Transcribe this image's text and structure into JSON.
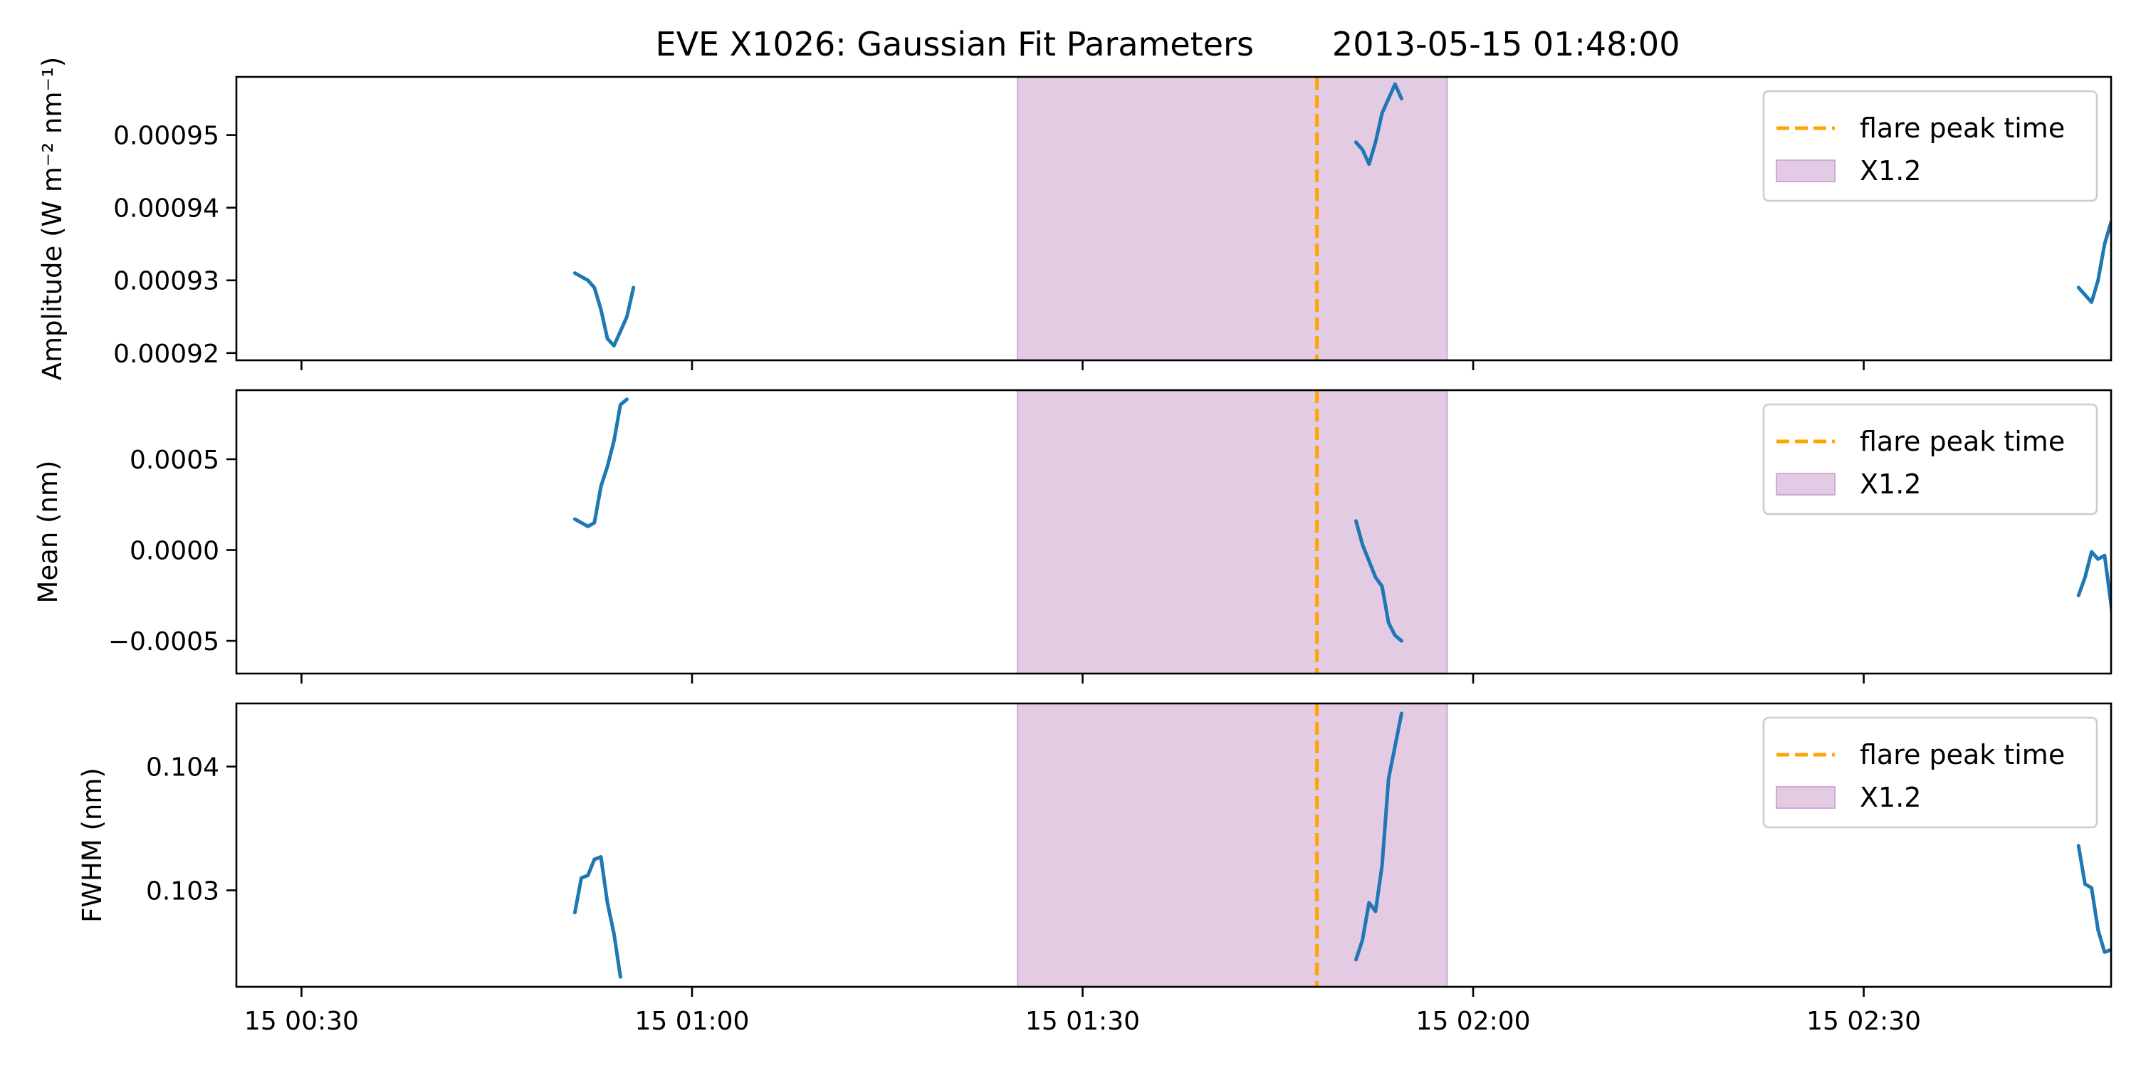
{
  "figure": {
    "title": "EVE X1026: Gaussian Fit Parameters",
    "timestamp": "2013-05-15 01:48:00"
  },
  "chart_data": [
    {
      "type": "line",
      "panel": "amplitude",
      "ylabel": "Amplitude (W m⁻² nm⁻¹)",
      "xlim": [
        "2013-05-15 00:25:00",
        "2013-05-15 02:49:00"
      ],
      "ylim": [
        0.000919,
        0.000958
      ],
      "yticks": [
        0.00092,
        0.00093,
        0.00094,
        0.00095
      ],
      "ytick_labels": [
        "0.00092",
        "0.00093",
        "0.00094",
        "0.00095"
      ],
      "xticks": [
        "2013-05-15 00:30:00",
        "2013-05-15 01:00:00",
        "2013-05-15 01:30:00",
        "2013-05-15 02:00:00",
        "2013-05-15 02:30:00"
      ],
      "xtick_labels": [],
      "shaded_region": {
        "start": "2013-05-15 01:25:00",
        "end": "2013-05-15 01:58:00",
        "label": "X1.2",
        "color": "#e3cce3",
        "edge_color": "#cfa8d8"
      },
      "vline": {
        "x": "2013-05-15 01:48:00",
        "label": "flare peak time",
        "color": "#ffa500"
      },
      "series": [
        {
          "name": "",
          "color": "#1f77b4",
          "segments": [
            [
              {
                "x": "2013-05-15 00:51:00",
                "y": 0.000931
              },
              {
                "x": "2013-05-15 00:52:00",
                "y": 0.00093
              },
              {
                "x": "2013-05-15 00:52:30",
                "y": 0.000929
              },
              {
                "x": "2013-05-15 00:53:00",
                "y": 0.000926
              },
              {
                "x": "2013-05-15 00:53:30",
                "y": 0.000922
              },
              {
                "x": "2013-05-15 00:54:00",
                "y": 0.000921
              },
              {
                "x": "2013-05-15 00:54:30",
                "y": 0.000923
              },
              {
                "x": "2013-05-15 00:55:00",
                "y": 0.000925
              },
              {
                "x": "2013-05-15 00:55:30",
                "y": 0.000929
              }
            ],
            [
              {
                "x": "2013-05-15 01:51:00",
                "y": 0.000949
              },
              {
                "x": "2013-05-15 01:51:30",
                "y": 0.000948
              },
              {
                "x": "2013-05-15 01:52:00",
                "y": 0.000946
              },
              {
                "x": "2013-05-15 01:52:30",
                "y": 0.000949
              },
              {
                "x": "2013-05-15 01:53:00",
                "y": 0.000953
              },
              {
                "x": "2013-05-15 01:53:30",
                "y": 0.000955
              },
              {
                "x": "2013-05-15 01:54:00",
                "y": 0.000957
              },
              {
                "x": "2013-05-15 01:54:30",
                "y": 0.000955
              }
            ],
            [
              {
                "x": "2013-05-15 02:46:30",
                "y": 0.000929
              },
              {
                "x": "2013-05-15 02:47:00",
                "y": 0.000928
              },
              {
                "x": "2013-05-15 02:47:30",
                "y": 0.000927
              },
              {
                "x": "2013-05-15 02:48:00",
                "y": 0.00093
              },
              {
                "x": "2013-05-15 02:48:30",
                "y": 0.000935
              },
              {
                "x": "2013-05-15 02:49:00",
                "y": 0.000938
              },
              {
                "x": "2013-05-15 02:49:30",
                "y": 0.000938
              }
            ]
          ]
        }
      ],
      "legend": {
        "location": "upper right",
        "entries": [
          "flare peak time",
          "X1.2"
        ]
      }
    },
    {
      "type": "line",
      "panel": "mean",
      "ylabel": "Mean (nm)",
      "xlim": [
        "2013-05-15 00:25:00",
        "2013-05-15 02:49:00"
      ],
      "ylim": [
        -0.00068,
        0.00088
      ],
      "yticks": [
        -0.0005,
        0.0,
        0.0005
      ],
      "ytick_labels": [
        "−0.0005",
        "0.0000",
        "0.0005"
      ],
      "xticks": [
        "2013-05-15 00:30:00",
        "2013-05-15 01:00:00",
        "2013-05-15 01:30:00",
        "2013-05-15 02:00:00",
        "2013-05-15 02:30:00"
      ],
      "xtick_labels": [],
      "shaded_region": {
        "start": "2013-05-15 01:25:00",
        "end": "2013-05-15 01:58:00",
        "label": "X1.2",
        "color": "#e3cce3",
        "edge_color": "#cfa8d8"
      },
      "vline": {
        "x": "2013-05-15 01:48:00",
        "label": "flare peak time",
        "color": "#ffa500"
      },
      "series": [
        {
          "name": "",
          "color": "#1f77b4",
          "segments": [
            [
              {
                "x": "2013-05-15 00:51:00",
                "y": 0.00017
              },
              {
                "x": "2013-05-15 00:52:00",
                "y": 0.00013
              },
              {
                "x": "2013-05-15 00:52:30",
                "y": 0.00015
              },
              {
                "x": "2013-05-15 00:53:00",
                "y": 0.00035
              },
              {
                "x": "2013-05-15 00:53:30",
                "y": 0.00046
              },
              {
                "x": "2013-05-15 00:54:00",
                "y": 0.0006
              },
              {
                "x": "2013-05-15 00:54:30",
                "y": 0.0008
              },
              {
                "x": "2013-05-15 00:55:00",
                "y": 0.00083
              }
            ],
            [
              {
                "x": "2013-05-15 01:51:00",
                "y": 0.00016
              },
              {
                "x": "2013-05-15 01:51:30",
                "y": 3e-05
              },
              {
                "x": "2013-05-15 01:52:00",
                "y": -6e-05
              },
              {
                "x": "2013-05-15 01:52:30",
                "y": -0.00015
              },
              {
                "x": "2013-05-15 01:53:00",
                "y": -0.0002
              },
              {
                "x": "2013-05-15 01:53:30",
                "y": -0.0004
              },
              {
                "x": "2013-05-15 01:54:00",
                "y": -0.00047
              },
              {
                "x": "2013-05-15 01:54:30",
                "y": -0.0005
              }
            ],
            [
              {
                "x": "2013-05-15 02:46:30",
                "y": -0.00025
              },
              {
                "x": "2013-05-15 02:47:00",
                "y": -0.00015
              },
              {
                "x": "2013-05-15 02:47:30",
                "y": -1e-05
              },
              {
                "x": "2013-05-15 02:48:00",
                "y": -5e-05
              },
              {
                "x": "2013-05-15 02:48:30",
                "y": -3e-05
              },
              {
                "x": "2013-05-15 02:49:00",
                "y": -0.0003
              },
              {
                "x": "2013-05-15 02:49:30",
                "y": -0.00062
              }
            ]
          ]
        }
      ],
      "legend": {
        "location": "upper right",
        "entries": [
          "flare peak time",
          "X1.2"
        ]
      }
    },
    {
      "type": "line",
      "panel": "fwhm",
      "ylabel": "FWHM (nm)",
      "xlim": [
        "2013-05-15 00:25:00",
        "2013-05-15 02:49:00"
      ],
      "ylim": [
        0.10222,
        0.10451
      ],
      "yticks": [
        0.103,
        0.104
      ],
      "ytick_labels": [
        "0.103",
        "0.104"
      ],
      "xticks": [
        "2013-05-15 00:30:00",
        "2013-05-15 01:00:00",
        "2013-05-15 01:30:00",
        "2013-05-15 02:00:00",
        "2013-05-15 02:30:00"
      ],
      "xtick_labels": [
        "15 00:30",
        "15 01:00",
        "15 01:30",
        "15 02:00",
        "15 02:30"
      ],
      "shaded_region": {
        "start": "2013-05-15 01:25:00",
        "end": "2013-05-15 01:58:00",
        "label": "X1.2",
        "color": "#e3cce3",
        "edge_color": "#cfa8d8"
      },
      "vline": {
        "x": "2013-05-15 01:48:00",
        "label": "flare peak time",
        "color": "#ffa500"
      },
      "series": [
        {
          "name": "",
          "color": "#1f77b4",
          "segments": [
            [
              {
                "x": "2013-05-15 00:51:00",
                "y": 0.10282
              },
              {
                "x": "2013-05-15 00:51:30",
                "y": 0.1031
              },
              {
                "x": "2013-05-15 00:52:00",
                "y": 0.10312
              },
              {
                "x": "2013-05-15 00:52:30",
                "y": 0.10325
              },
              {
                "x": "2013-05-15 00:53:00",
                "y": 0.10327
              },
              {
                "x": "2013-05-15 00:53:30",
                "y": 0.1029
              },
              {
                "x": "2013-05-15 00:54:00",
                "y": 0.10265
              },
              {
                "x": "2013-05-15 00:54:30",
                "y": 0.1023
              }
            ],
            [
              {
                "x": "2013-05-15 01:51:00",
                "y": 0.10244
              },
              {
                "x": "2013-05-15 01:51:30",
                "y": 0.1026
              },
              {
                "x": "2013-05-15 01:52:00",
                "y": 0.1029
              },
              {
                "x": "2013-05-15 01:52:30",
                "y": 0.10283
              },
              {
                "x": "2013-05-15 01:53:00",
                "y": 0.1032
              },
              {
                "x": "2013-05-15 01:53:30",
                "y": 0.1039
              },
              {
                "x": "2013-05-15 01:54:30",
                "y": 0.10443
              }
            ],
            [
              {
                "x": "2013-05-15 02:46:30",
                "y": 0.10336
              },
              {
                "x": "2013-05-15 02:47:00",
                "y": 0.10305
              },
              {
                "x": "2013-05-15 02:47:30",
                "y": 0.10302
              },
              {
                "x": "2013-05-15 02:48:00",
                "y": 0.10268
              },
              {
                "x": "2013-05-15 02:48:30",
                "y": 0.1025
              },
              {
                "x": "2013-05-15 02:49:00",
                "y": 0.10252
              },
              {
                "x": "2013-05-15 02:49:30",
                "y": 0.10255
              }
            ]
          ]
        }
      ],
      "legend": {
        "location": "upper right",
        "entries": [
          "flare peak time",
          "X1.2"
        ]
      }
    }
  ]
}
